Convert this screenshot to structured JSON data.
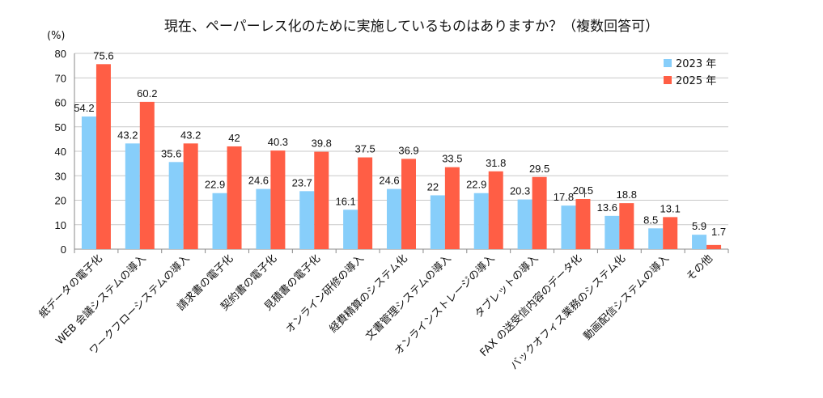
{
  "title": "現在、ペーパーレス化のために実施しているものはありますか？（複数回答可）",
  "unit_label": "(%)",
  "colors": {
    "y2023": "#87CEFA",
    "y2025": "#FF5E45",
    "grid": "#c8c8c8",
    "axis": "#888888"
  },
  "chart_data": {
    "type": "bar",
    "title": "現在、ペーパーレス化のために実施しているものはありますか？（複数回答可）",
    "ylabel": "(%)",
    "ylim": [
      0,
      80
    ],
    "yticks": [
      0,
      10,
      20,
      30,
      40,
      50,
      60,
      70,
      80
    ],
    "grid": true,
    "legend_position": "top-right",
    "categories": [
      "紙データの電子化",
      "WEB 会議システムの導入",
      "ワークフローシステムの導入",
      "請求書の電子化",
      "契約書の電子化",
      "見積書の電子化",
      "オンライン研修の導入",
      "経費精算のシステム化",
      "文書管理システムの導入",
      "オンラインストレージの導入",
      "タブレットの導入",
      "FAX の送受信内容のデータ化",
      "バックオフィス業務のシステム化",
      "動画配信システムの導入",
      "その他"
    ],
    "series": [
      {
        "name": "2023 年",
        "values": [
          54.2,
          43.2,
          35.6,
          22.9,
          24.6,
          23.7,
          16.1,
          24.6,
          22,
          22.9,
          20.3,
          17.8,
          13.6,
          8.5,
          5.9
        ]
      },
      {
        "name": "2025 年",
        "values": [
          75.6,
          60.2,
          43.2,
          42,
          40.3,
          39.8,
          37.5,
          36.9,
          33.5,
          31.8,
          29.5,
          20.5,
          18.8,
          13.1,
          1.7
        ]
      }
    ]
  }
}
